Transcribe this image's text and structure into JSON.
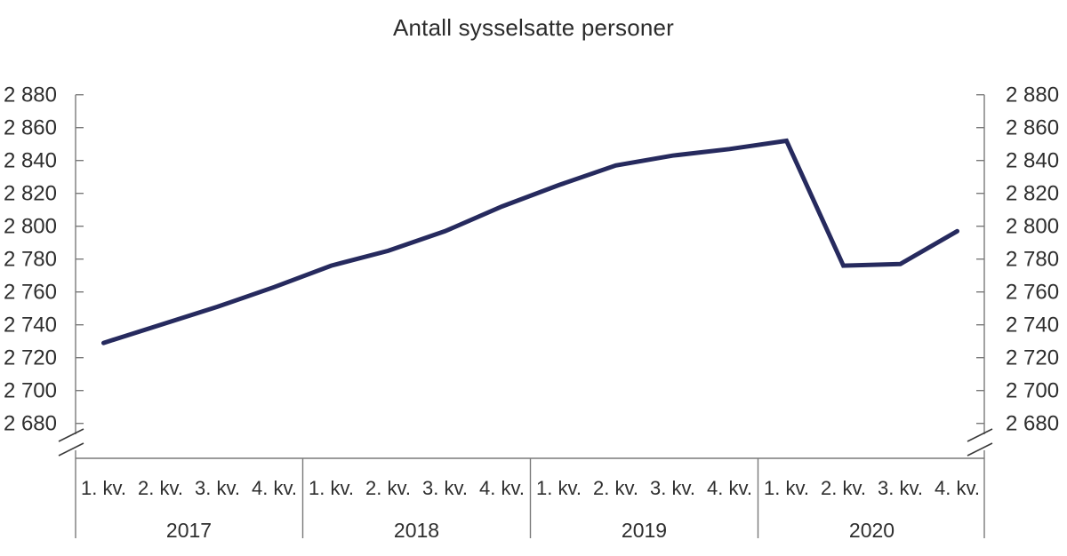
{
  "chart_data": {
    "type": "line",
    "title": "Antall sysselsatte personer",
    "x_groups": [
      {
        "year": "2017",
        "quarters": [
          "1. kv.",
          "2. kv.",
          "3. kv.",
          "4. kv."
        ]
      },
      {
        "year": "2018",
        "quarters": [
          "1. kv.",
          "2. kv.",
          "3. kv.",
          "4. kv."
        ]
      },
      {
        "year": "2019",
        "quarters": [
          "1. kv.",
          "2. kv.",
          "3. kv.",
          "4. kv."
        ]
      },
      {
        "year": "2020",
        "quarters": [
          "1. kv.",
          "2. kv.",
          "3. kv.",
          "4. kv."
        ]
      }
    ],
    "series": [
      {
        "name": "Antall sysselsatte personer",
        "color": "#262a5e",
        "values": [
          2729,
          2740,
          2751,
          2763,
          2776,
          2785,
          2797,
          2812,
          2825,
          2837,
          2843,
          2847,
          2852,
          2776,
          2777,
          2797
        ]
      }
    ],
    "y_axis": {
      "min": 2680,
      "max": 2880,
      "step": 20,
      "tick_labels": [
        "2 680",
        "2 700",
        "2 720",
        "2 740",
        "2 760",
        "2 780",
        "2 800",
        "2 820",
        "2 840",
        "2 860",
        "2 880"
      ],
      "sides": "both",
      "broken_axis": true
    },
    "grid": false,
    "legend_position": "none",
    "colors": {
      "axis": "#7a7a7a",
      "break_mark": "#3a3a3a",
      "text": "#2e2e2e",
      "background": "#ffffff"
    }
  }
}
